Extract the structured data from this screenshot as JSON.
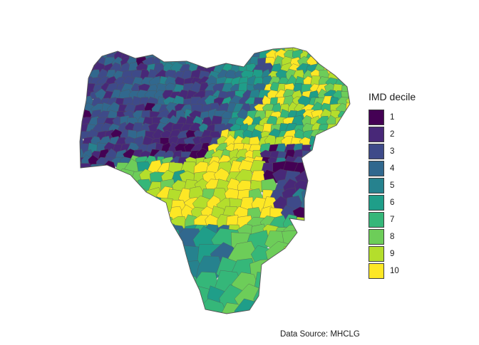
{
  "legend": {
    "title": "IMD decile",
    "entries": [
      {
        "label": "1",
        "color": "#440154"
      },
      {
        "label": "2",
        "color": "#482878"
      },
      {
        "label": "3",
        "color": "#3e4a89"
      },
      {
        "label": "4",
        "color": "#31688e"
      },
      {
        "label": "5",
        "color": "#26828e"
      },
      {
        "label": "6",
        "color": "#1f9e89"
      },
      {
        "label": "7",
        "color": "#35b779"
      },
      {
        "label": "8",
        "color": "#6dcd59"
      },
      {
        "label": "9",
        "color": "#b4de2c"
      },
      {
        "label": "10",
        "color": "#fde725"
      }
    ]
  },
  "caption": "Data Source: MHCLG",
  "border_color": "#555555"
}
